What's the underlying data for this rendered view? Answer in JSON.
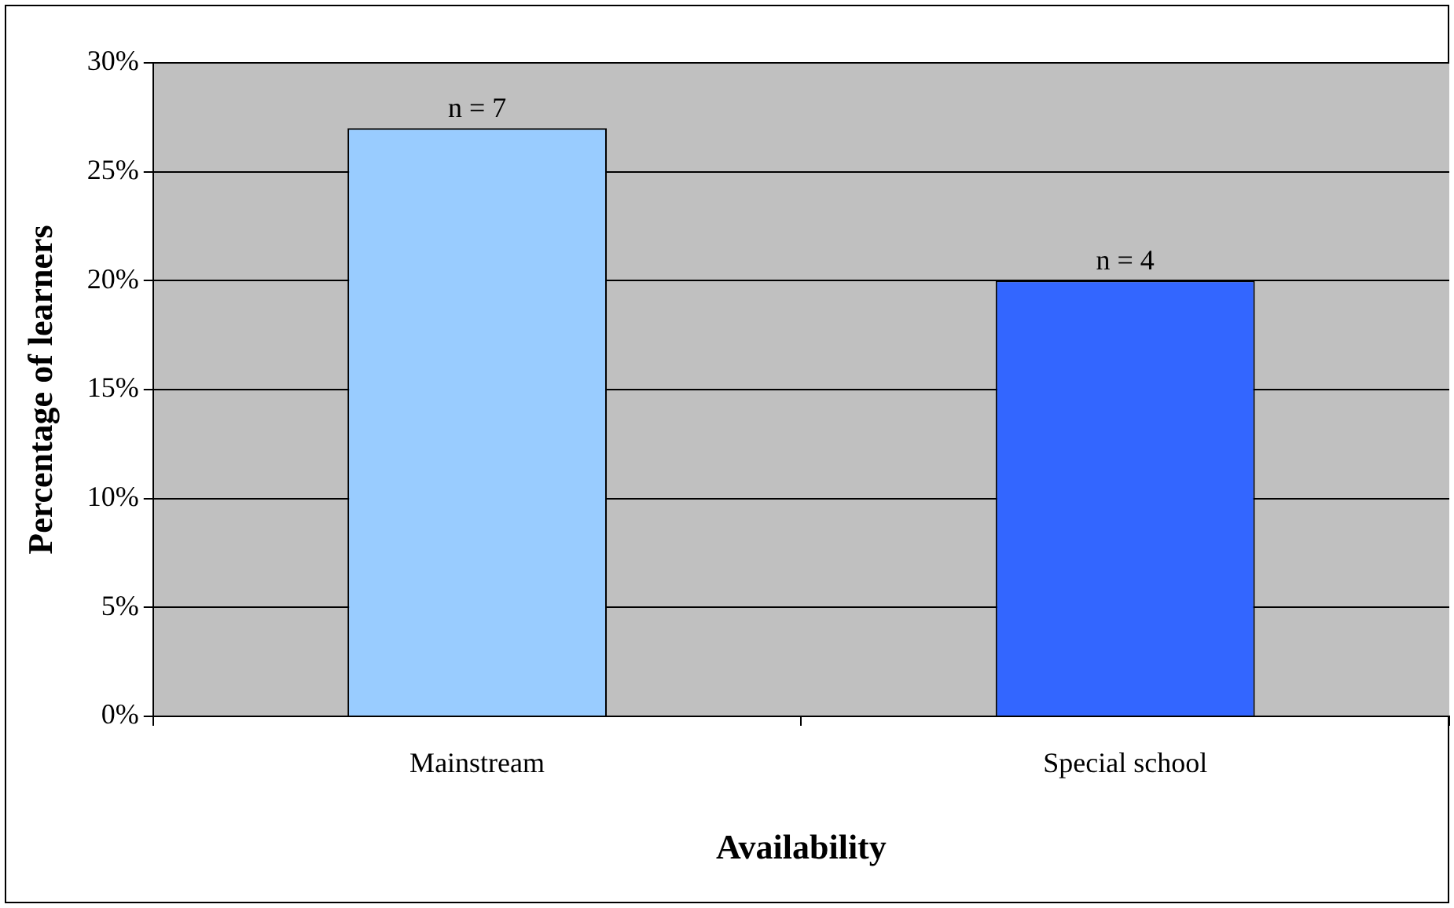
{
  "chart_data": {
    "type": "bar",
    "xlabel": "Availability",
    "ylabel": "Percentage of learners",
    "categories": [
      "Mainstream",
      "Special school"
    ],
    "values": [
      27,
      20
    ],
    "colors": [
      "#99ccff",
      "#3366ff"
    ],
    "annotations": [
      {
        "text": "n = 7",
        "x": "Mainstream",
        "y": 27
      },
      {
        "text": "n = 4",
        "x": "Special school",
        "y": 20
      }
    ],
    "ylim": [
      0,
      30
    ],
    "yticks": [
      {
        "value": 0,
        "label": "0%"
      },
      {
        "value": 5,
        "label": "5%"
      },
      {
        "value": 10,
        "label": "10%"
      },
      {
        "value": 15,
        "label": "15%"
      },
      {
        "value": 20,
        "label": "20%"
      },
      {
        "value": 25,
        "label": "25%"
      },
      {
        "value": 30,
        "label": "30%"
      }
    ],
    "grid": "y",
    "legend": false
  }
}
